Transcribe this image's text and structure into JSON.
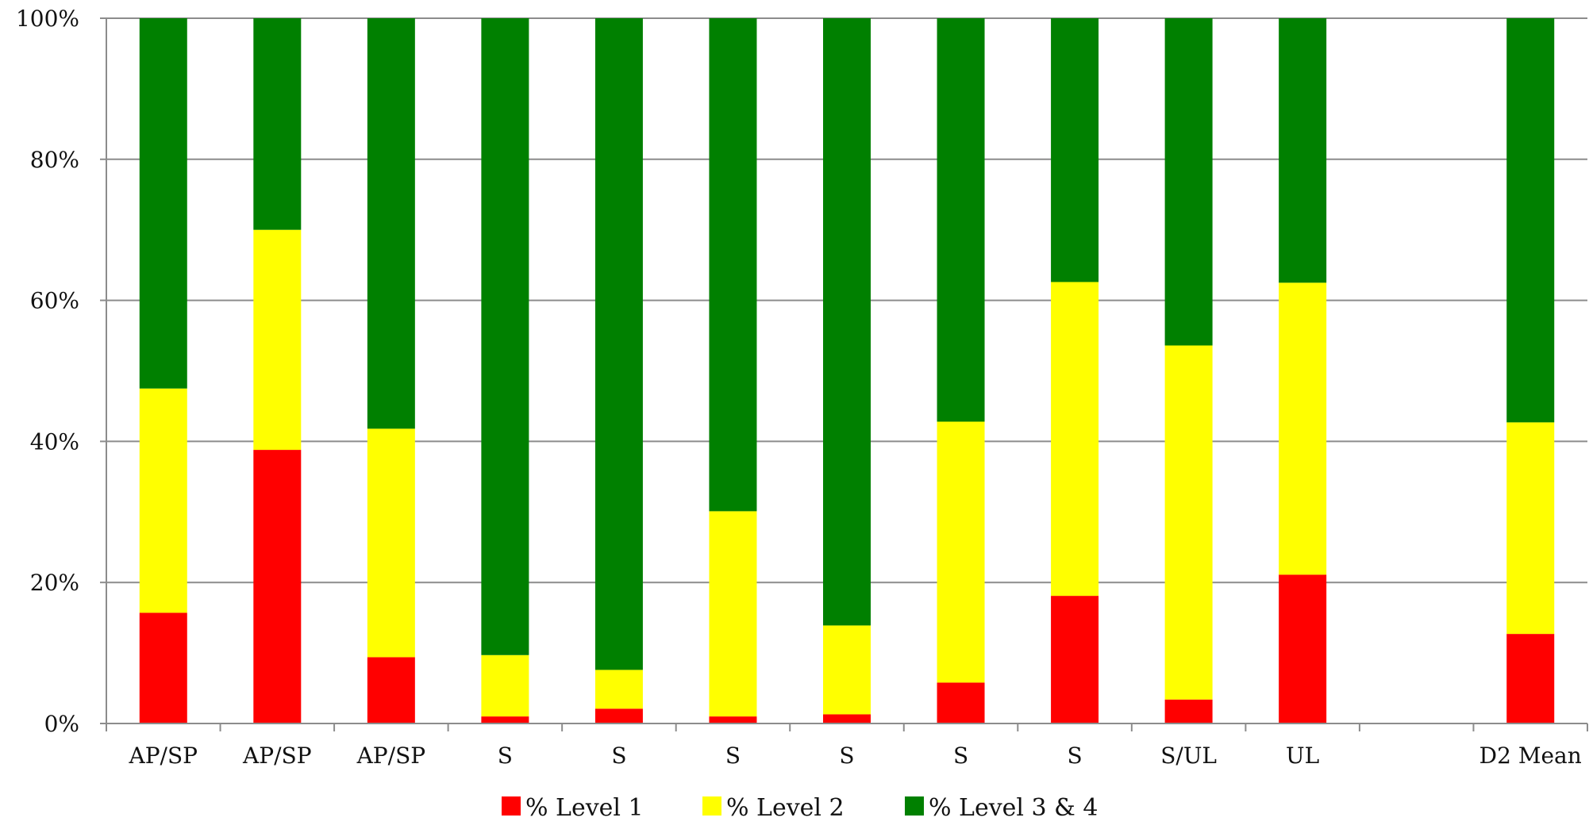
{
  "chart_data": {
    "type": "bar",
    "stacked": true,
    "percent_stacked": true,
    "title": "",
    "xlabel": "",
    "ylabel": "",
    "ylim": [
      0,
      100
    ],
    "y_ticks": [
      "0%",
      "20%",
      "40%",
      "60%",
      "80%",
      "100%"
    ],
    "grid": true,
    "legend_position": "bottom",
    "categories": [
      "AP/SP",
      "AP/SP",
      "AP/SP",
      "S",
      "S",
      "S",
      "S",
      "S",
      "S",
      "S/UL",
      "UL",
      "",
      "D2 Mean"
    ],
    "series": [
      {
        "name": "% Level 1",
        "color": "#ff0000",
        "values": [
          15.7,
          38.8,
          9.4,
          1.0,
          2.1,
          1.0,
          1.3,
          5.8,
          18.1,
          3.4,
          21.1,
          null,
          12.7
        ]
      },
      {
        "name": "% Level 2",
        "color": "#ffff00",
        "values": [
          31.8,
          31.2,
          32.4,
          8.7,
          5.5,
          29.1,
          12.6,
          37.0,
          44.5,
          50.2,
          41.4,
          null,
          30.0
        ]
      },
      {
        "name": "% Level 3 & 4",
        "color": "#008000",
        "values": [
          52.5,
          30.0,
          58.2,
          90.3,
          92.4,
          69.9,
          86.1,
          57.2,
          37.4,
          46.4,
          37.5,
          null,
          57.3
        ]
      }
    ]
  }
}
